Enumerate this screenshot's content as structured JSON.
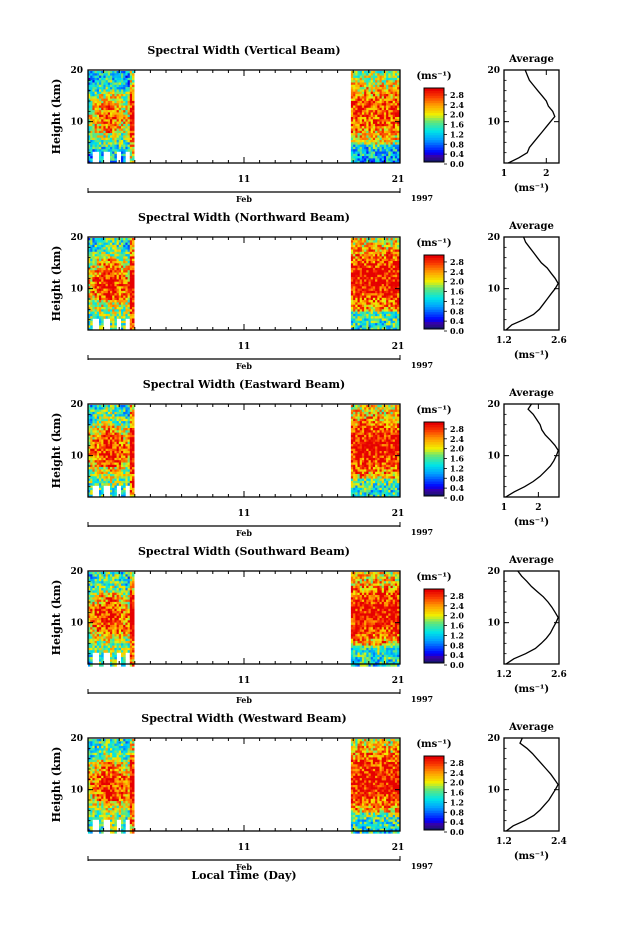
{
  "chart_data": {
    "type": "heatmap",
    "xlabel": "Local Time (Day)",
    "x_ticks": [
      "11",
      "21"
    ],
    "month_label": "Feb",
    "year_label": "1997",
    "ylabel": "Height (km)",
    "y_ticks": [
      "10",
      "20"
    ],
    "ylim": [
      2,
      20
    ],
    "colorbar_unit": "(ms⁻¹)",
    "colorbar_ticks": [
      "0.0",
      "0.4",
      "0.8",
      "1.2",
      "1.6",
      "2.0",
      "2.4",
      "2.8"
    ],
    "colorbar_range": [
      0.0,
      3.0
    ],
    "average_title": "Average",
    "average_unit": "(ms⁻¹)",
    "data_gaps": "Data present approx. Feb 1–3 and Feb 18–21; no data in between.",
    "panels": [
      {
        "title": "Spectral Width (Vertical Beam)",
        "avg_ticks": [
          "1",
          "2"
        ],
        "avg_xlim": [
          1.0,
          2.3
        ],
        "avg_profile": {
          "height": [
            2,
            3,
            4,
            5,
            6,
            7,
            8,
            9,
            10,
            11,
            12,
            13,
            14,
            15,
            16,
            17,
            18,
            19,
            20
          ],
          "value": [
            1.1,
            1.35,
            1.55,
            1.6,
            1.7,
            1.8,
            1.9,
            2.0,
            2.1,
            2.2,
            2.15,
            2.05,
            2.0,
            1.9,
            1.8,
            1.7,
            1.6,
            1.55,
            1.5
          ]
        }
      },
      {
        "title": "Spectral Width (Northward Beam)",
        "avg_ticks": [
          "1.2",
          "2.6"
        ],
        "avg_xlim": [
          1.2,
          2.6
        ],
        "avg_profile": {
          "height": [
            2,
            3,
            4,
            5,
            6,
            7,
            8,
            9,
            10,
            11,
            12,
            13,
            14,
            15,
            16,
            17,
            18,
            19,
            20
          ],
          "value": [
            1.25,
            1.4,
            1.7,
            1.95,
            2.1,
            2.2,
            2.3,
            2.4,
            2.5,
            2.58,
            2.5,
            2.4,
            2.3,
            2.15,
            2.05,
            1.95,
            1.85,
            1.75,
            1.7
          ]
        }
      },
      {
        "title": "Spectral Width (Eastward Beam)",
        "avg_ticks": [
          "1",
          "2"
        ],
        "avg_xlim": [
          1.0,
          2.6
        ],
        "avg_profile": {
          "height": [
            2,
            3,
            4,
            5,
            6,
            7,
            8,
            9,
            10,
            11,
            12,
            13,
            14,
            15,
            16,
            17,
            18,
            19,
            20
          ],
          "value": [
            1.05,
            1.3,
            1.6,
            1.85,
            2.05,
            2.2,
            2.35,
            2.45,
            2.52,
            2.58,
            2.48,
            2.35,
            2.2,
            2.1,
            2.05,
            1.95,
            1.85,
            1.7,
            1.8
          ]
        }
      },
      {
        "title": "Spectral Width (Southward Beam)",
        "avg_ticks": [
          "1.2",
          "2.6"
        ],
        "avg_xlim": [
          1.2,
          2.6
        ],
        "avg_profile": {
          "height": [
            2,
            3,
            4,
            5,
            6,
            7,
            8,
            9,
            10,
            11,
            12,
            13,
            14,
            15,
            16,
            17,
            18,
            19,
            20
          ],
          "value": [
            1.25,
            1.45,
            1.75,
            2.0,
            2.15,
            2.28,
            2.38,
            2.45,
            2.52,
            2.58,
            2.5,
            2.42,
            2.32,
            2.2,
            2.05,
            1.9,
            1.78,
            1.65,
            1.55
          ]
        }
      },
      {
        "title": "Spectral Width (Westward Beam)",
        "avg_ticks": [
          "1.2",
          "2.4"
        ],
        "avg_xlim": [
          1.2,
          2.4
        ],
        "avg_profile": {
          "height": [
            2,
            3,
            4,
            5,
            6,
            7,
            8,
            9,
            10,
            11,
            12,
            13,
            14,
            15,
            16,
            17,
            18,
            19,
            20
          ],
          "value": [
            1.25,
            1.4,
            1.65,
            1.85,
            1.98,
            2.08,
            2.18,
            2.25,
            2.32,
            2.38,
            2.3,
            2.22,
            2.12,
            2.02,
            1.92,
            1.82,
            1.7,
            1.55,
            1.6
          ]
        }
      }
    ]
  }
}
